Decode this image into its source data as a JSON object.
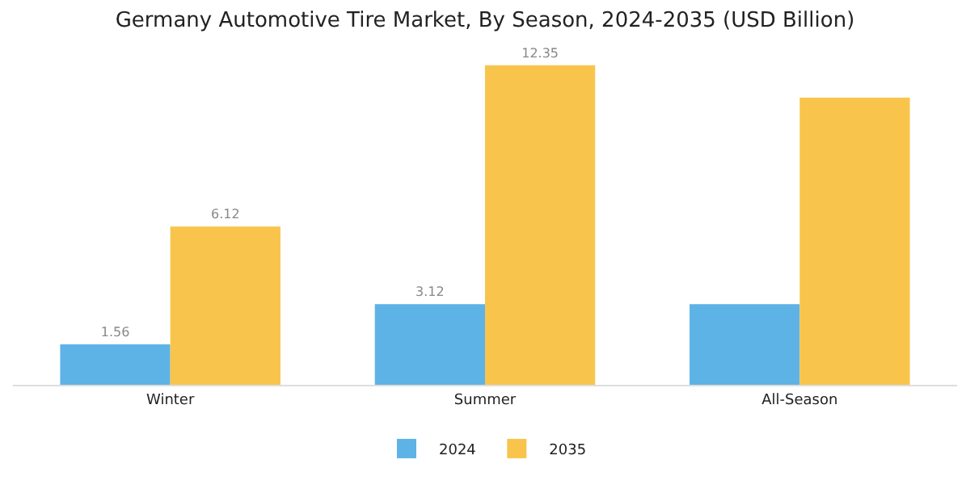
{
  "chart_data": {
    "type": "bar",
    "title": "Germany Automotive Tire Market, By Season, 2024-2035 (USD Billion)",
    "categories": [
      "Winter",
      "Summer",
      "All-Season"
    ],
    "series": [
      {
        "name": "2024",
        "color": "#5db3e6",
        "values": [
          1.56,
          3.12,
          3.12
        ],
        "value_labels": [
          "1.56",
          "3.12",
          null
        ]
      },
      {
        "name": "2035",
        "color": "#f8c44c",
        "values": [
          6.12,
          12.35,
          11.1
        ],
        "value_labels": [
          "6.12",
          "12.35",
          null
        ]
      }
    ],
    "legend": "bottom",
    "grid": false
  }
}
